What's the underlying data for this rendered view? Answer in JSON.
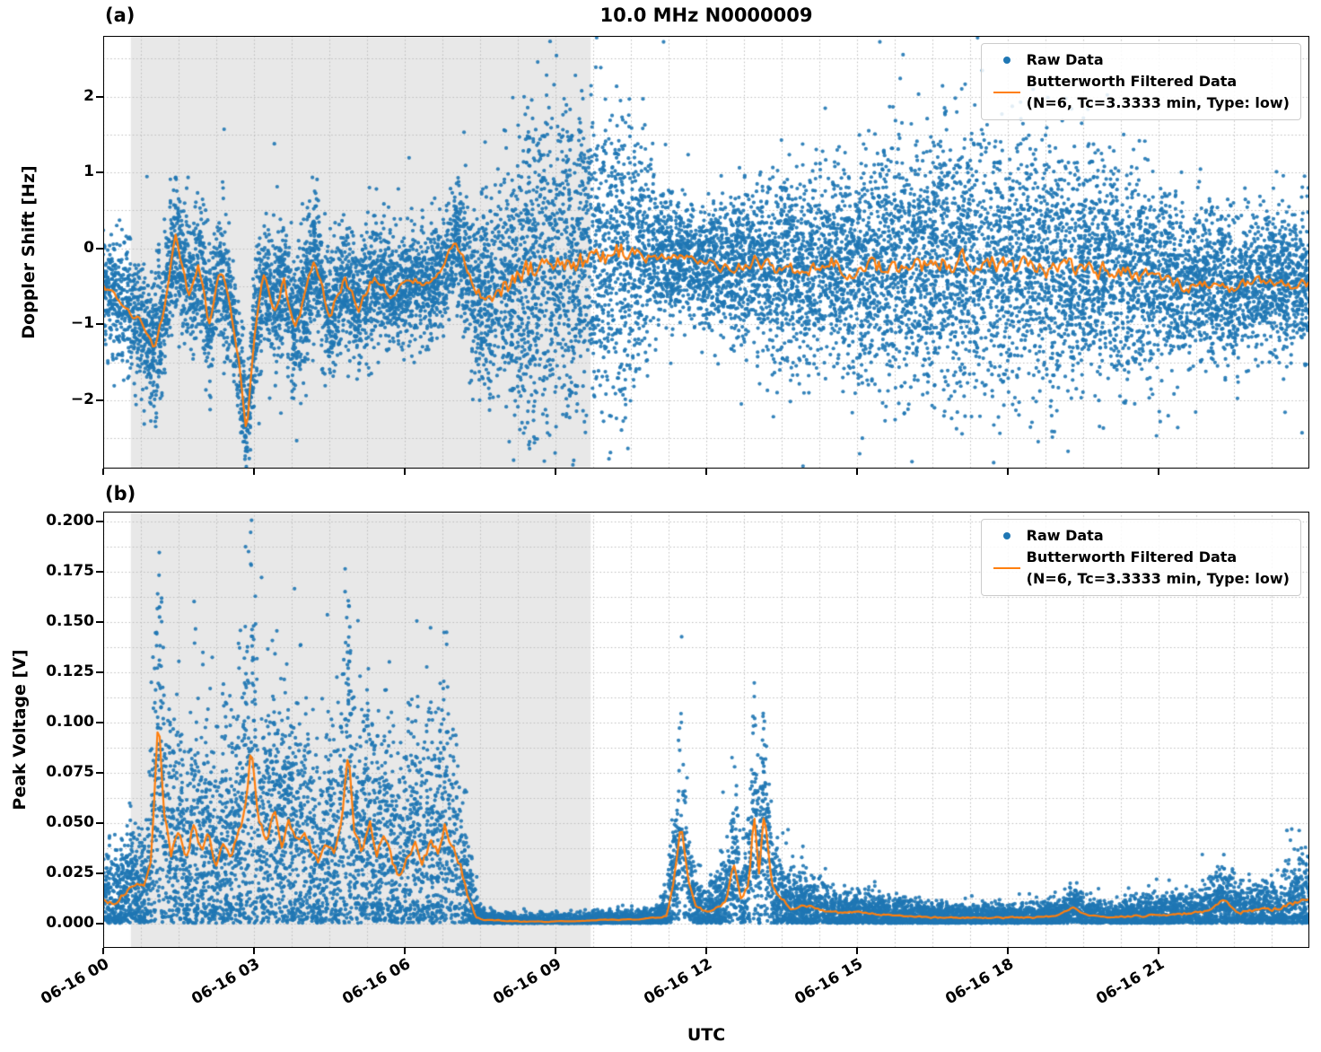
{
  "figure": {
    "xlabel": "UTC",
    "background": "#ffffff",
    "grid": true,
    "legend_position": "upper right",
    "colors": {
      "raw": "#1f77b4",
      "filtered": "#ff7f0e",
      "shade": "#e8e8e8",
      "grid": "#bdbdbd"
    },
    "legend": {
      "raw": "Raw Data",
      "filtered_line1": "Butterworth Filtered Data",
      "filtered_line2": "(N=6, Tc=3.3333 min, Type: low)"
    },
    "xlim": [
      0,
      24
    ],
    "xticks": {
      "values": [
        0,
        3,
        6,
        9,
        12,
        15,
        18,
        21
      ],
      "labels": [
        "06-16 00",
        "06-16 03",
        "06-16 06",
        "06-16 09",
        "06-16 12",
        "06-16 15",
        "06-16 18",
        "06-16 21"
      ]
    }
  },
  "chart_data": [
    {
      "type": "scatter+line",
      "panel_label": "(a)",
      "title": "10.0 MHz N0000009",
      "ylabel": "Doppler Shift [Hz]",
      "xlabel": "",
      "ylim": [
        -2.9,
        2.8
      ],
      "yticks": {
        "values": [
          -2,
          -1,
          0,
          1,
          2
        ],
        "labels": [
          "−2",
          "−1",
          "0",
          "1",
          "2"
        ]
      },
      "y_minor_step": 0.5,
      "grid_y_start": -2.5,
      "x_grid_step": 0.75,
      "shaded_region_t": [
        0.55,
        9.7
      ],
      "series": [
        {
          "name": "Raw Data",
          "style": "scatter",
          "color": "#1f77b4",
          "n_points": 14000,
          "sigma_center_frac": 0,
          "outlier_frac": 0.012,
          "outlier_boost": 2.2,
          "clamp_min": null,
          "envelope": {
            "t": [
              0,
              0.5,
              1,
              2,
              2.85,
              3.5,
              4.5,
              5.5,
              6.5,
              7.0,
              7.5,
              8.0,
              8.5,
              9.0,
              9.5,
              10.0,
              10.5,
              11.0,
              11.5,
              12.0,
              12.5,
              13.0,
              14.0,
              15.0,
              16.0,
              17.0,
              18.0,
              19.0,
              20.0,
              21.0,
              22.0,
              23.0,
              24.0
            ],
            "spread": [
              0.35,
              0.4,
              0.45,
              0.45,
              0.35,
              0.45,
              0.45,
              0.4,
              0.35,
              0.4,
              0.6,
              0.85,
              1.0,
              1.05,
              1.05,
              1.0,
              0.9,
              0.5,
              0.35,
              0.4,
              0.45,
              0.55,
              0.65,
              0.7,
              0.8,
              0.85,
              0.85,
              0.8,
              0.75,
              0.6,
              0.5,
              0.45,
              0.5
            ]
          }
        },
        {
          "name": "Butterworth Filtered Data (N=6, Tc=3.3333 min, Type: low)",
          "style": "line",
          "color": "#ff7f0e",
          "jitter_frac": 0.28,
          "clamp_min": null,
          "control_points": {
            "t": [
              0.0,
              0.3,
              0.7,
              1.0,
              1.2,
              1.45,
              1.7,
              1.9,
              2.1,
              2.3,
              2.5,
              2.7,
              2.85,
              3.0,
              3.2,
              3.4,
              3.6,
              3.8,
              4.0,
              4.2,
              4.5,
              4.8,
              5.1,
              5.4,
              5.7,
              6.0,
              6.2,
              6.5,
              6.8,
              7.0,
              7.3,
              7.6,
              8.0,
              8.5,
              9.0,
              9.5,
              10.0,
              10.5,
              11.0,
              11.3,
              11.6,
              12.0,
              12.5,
              13.0,
              13.5,
              14.0,
              14.5,
              15.0,
              15.5,
              16.0,
              16.5,
              17.0,
              17.5,
              18.0,
              18.5,
              19.0,
              19.5,
              20.0,
              20.5,
              21.0,
              21.5,
              22.0,
              22.5,
              23.0,
              23.5,
              24.0
            ],
            "v": [
              -0.5,
              -0.65,
              -0.9,
              -1.3,
              -0.9,
              0.2,
              -0.6,
              -0.2,
              -1.0,
              -0.3,
              -0.6,
              -1.5,
              -2.45,
              -1.2,
              -0.3,
              -0.8,
              -0.4,
              -1.1,
              -0.7,
              -0.15,
              -0.9,
              -0.4,
              -0.8,
              -0.35,
              -0.6,
              -0.5,
              -0.4,
              -0.5,
              -0.2,
              0.1,
              -0.4,
              -0.7,
              -0.5,
              -0.3,
              -0.1,
              -0.15,
              -0.1,
              0.0,
              -0.1,
              -0.15,
              -0.1,
              -0.2,
              -0.25,
              -0.15,
              -0.3,
              -0.25,
              -0.2,
              -0.3,
              -0.25,
              -0.2,
              -0.25,
              -0.2,
              -0.15,
              -0.25,
              -0.2,
              -0.3,
              -0.25,
              -0.3,
              -0.35,
              -0.4,
              -0.5,
              -0.45,
              -0.55,
              -0.4,
              -0.5,
              -0.45
            ]
          }
        }
      ]
    },
    {
      "type": "scatter+line",
      "panel_label": "(b)",
      "title": "",
      "ylabel": "Peak Voltage [V]",
      "xlabel": "UTC",
      "ylim": [
        -0.012,
        0.205
      ],
      "yticks": {
        "values": [
          0.0,
          0.025,
          0.05,
          0.075,
          0.1,
          0.125,
          0.15,
          0.175,
          0.2
        ],
        "labels": [
          "0.000",
          "0.025",
          "0.050",
          "0.075",
          "0.100",
          "0.125",
          "0.150",
          "0.175",
          "0.200"
        ]
      },
      "y_minor_step": 0.0125,
      "grid_y_start": 0,
      "x_grid_step": 0.75,
      "shaded_region_t": [
        0.55,
        9.7
      ],
      "series": [
        {
          "name": "Raw Data",
          "style": "scatter",
          "color": "#1f77b4",
          "n_points": 13000,
          "sigma_center_frac": 0.5,
          "outlier_frac": 0.02,
          "outlier_boost": 1.8,
          "clamp_min": 0.0003,
          "envelope": {
            "t": [
              0,
              0.9,
              1.5,
              7.0,
              7.4,
              7.6,
              11.0,
              11.3,
              12.0,
              12.4,
              13.4,
              14.0,
              16.0,
              19.0,
              20.0,
              22.0,
              23.0,
              24.0
            ],
            "spread": [
              0.006,
              0.008,
              0.014,
              0.014,
              0.004,
              0.0012,
              0.0012,
              0.006,
              0.004,
              0.006,
              0.006,
              0.004,
              0.002,
              0.002,
              0.002,
              0.004,
              0.005,
              0.007
            ]
          }
        },
        {
          "name": "Butterworth Filtered Data (N=6, Tc=3.3333 min, Type: low)",
          "style": "line",
          "color": "#ff7f0e",
          "jitter_frac": 0.35,
          "clamp_min": 0.0005,
          "control_points": {
            "t": [
              0,
              0.2,
              0.4,
              0.6,
              0.8,
              0.95,
              1.1,
              1.2,
              1.35,
              1.5,
              1.65,
              1.8,
              1.95,
              2.1,
              2.25,
              2.4,
              2.55,
              2.7,
              2.85,
              2.95,
              3.1,
              3.25,
              3.4,
              3.55,
              3.7,
              3.85,
              4.0,
              4.15,
              4.3,
              4.45,
              4.6,
              4.75,
              4.88,
              5.0,
              5.15,
              5.3,
              5.45,
              5.6,
              5.75,
              5.9,
              6.05,
              6.2,
              6.35,
              6.5,
              6.65,
              6.8,
              6.95,
              7.1,
              7.25,
              7.4,
              7.6,
              8.0,
              8.5,
              9.0,
              9.5,
              10.0,
              10.5,
              11.0,
              11.2,
              11.35,
              11.5,
              11.65,
              11.8,
              12.0,
              12.2,
              12.4,
              12.55,
              12.7,
              12.85,
              12.95,
              13.05,
              13.15,
              13.3,
              13.5,
              13.7,
              13.9,
              14.1,
              14.4,
              14.7,
              15.0,
              15.3,
              15.7,
              16.0,
              16.5,
              17.0,
              17.5,
              18.0,
              18.5,
              19.0,
              19.3,
              19.6,
              20.0,
              20.5,
              21.0,
              21.5,
              22.0,
              22.3,
              22.6,
              23.0,
              23.4,
              23.7,
              24.0
            ],
            "v": [
              0.013,
              0.01,
              0.015,
              0.02,
              0.018,
              0.03,
              0.105,
              0.055,
              0.035,
              0.045,
              0.03,
              0.05,
              0.035,
              0.045,
              0.03,
              0.04,
              0.035,
              0.045,
              0.06,
              0.088,
              0.05,
              0.04,
              0.055,
              0.04,
              0.05,
              0.04,
              0.045,
              0.035,
              0.03,
              0.04,
              0.035,
              0.05,
              0.088,
              0.045,
              0.035,
              0.05,
              0.035,
              0.045,
              0.03,
              0.025,
              0.035,
              0.04,
              0.03,
              0.04,
              0.035,
              0.05,
              0.04,
              0.03,
              0.015,
              0.004,
              0.002,
              0.0015,
              0.001,
              0.001,
              0.0015,
              0.002,
              0.002,
              0.003,
              0.004,
              0.02,
              0.05,
              0.02,
              0.008,
              0.006,
              0.008,
              0.012,
              0.03,
              0.012,
              0.02,
              0.055,
              0.025,
              0.055,
              0.02,
              0.012,
              0.008,
              0.01,
              0.008,
              0.006,
              0.005,
              0.006,
              0.005,
              0.004,
              0.004,
              0.003,
              0.003,
              0.003,
              0.003,
              0.003,
              0.004,
              0.008,
              0.004,
              0.003,
              0.004,
              0.004,
              0.005,
              0.006,
              0.012,
              0.006,
              0.006,
              0.008,
              0.01,
              0.012
            ]
          }
        }
      ]
    }
  ]
}
